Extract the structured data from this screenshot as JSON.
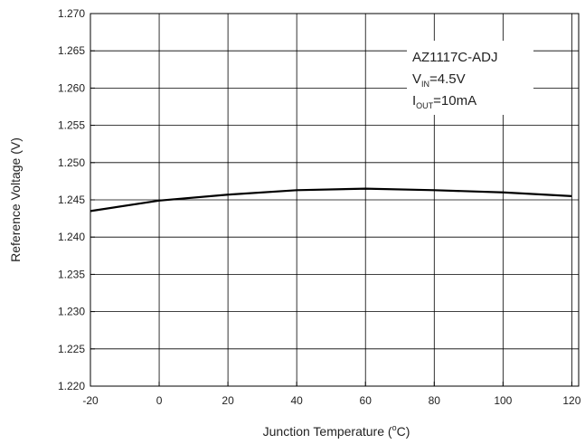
{
  "chart_data": {
    "type": "line",
    "x_label": {
      "main": "Junction Temperature (",
      "sup": "o",
      "end": "C)"
    },
    "y_label": "Reference Voltage (V)",
    "annotation": {
      "device": "AZ1117C-ADJ",
      "v": "V",
      "v_sub": "IN",
      "v_val": "=4.5V",
      "i": "I",
      "i_sub": "OUT",
      "i_val": "=10mA"
    },
    "x": [
      -20,
      0,
      20,
      40,
      60,
      80,
      100,
      120
    ],
    "series": [
      {
        "name": "AZ1117C-ADJ",
        "color": "#000000",
        "values": [
          1.2435,
          1.2449,
          1.2457,
          1.2463,
          1.2465,
          1.2463,
          1.246,
          1.2455
        ]
      }
    ],
    "xlim": [
      -20,
      122
    ],
    "xticks": [
      -20,
      0,
      20,
      40,
      60,
      80,
      100,
      120
    ],
    "ylim": [
      1.22,
      1.27
    ],
    "yticks": [
      {
        "value": 1.22,
        "label": "1.220"
      },
      {
        "value": 1.225,
        "label": "1.225"
      },
      {
        "value": 1.23,
        "label": "1.230"
      },
      {
        "value": 1.235,
        "label": "1.235"
      },
      {
        "value": 1.24,
        "label": "1.240"
      },
      {
        "value": 1.245,
        "label": "1.245"
      },
      {
        "value": 1.25,
        "label": "1.250"
      },
      {
        "value": 1.255,
        "label": "1.255"
      },
      {
        "value": 1.26,
        "label": "1.260"
      },
      {
        "value": 1.265,
        "label": "1.265"
      },
      {
        "value": 1.27,
        "label": "1.270"
      }
    ],
    "grid": true
  }
}
